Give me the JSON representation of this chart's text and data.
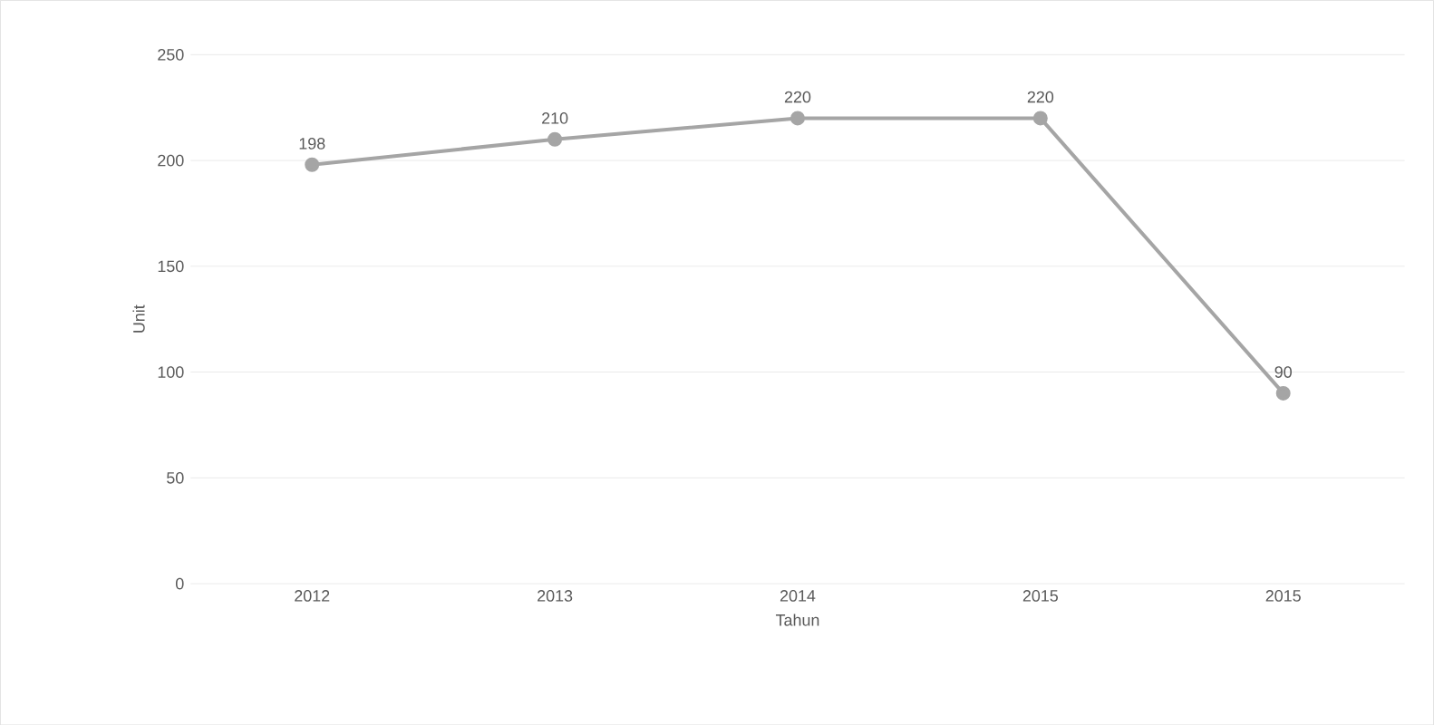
{
  "chart_data": {
    "type": "line",
    "xlabel": "Tahun",
    "ylabel": "Unit",
    "categories": [
      "2012",
      "2013",
      "2014",
      "2015",
      "2015"
    ],
    "series": [
      {
        "color": "#a5a5a5",
        "values": [
          198,
          210,
          220,
          220,
          90
        ]
      }
    ],
    "ylim": [
      0,
      250
    ],
    "yticks": [
      0,
      50,
      100,
      150,
      200,
      250
    ],
    "grid": "y",
    "marker": "circle",
    "line_style": "solid",
    "data_labels": true
  }
}
